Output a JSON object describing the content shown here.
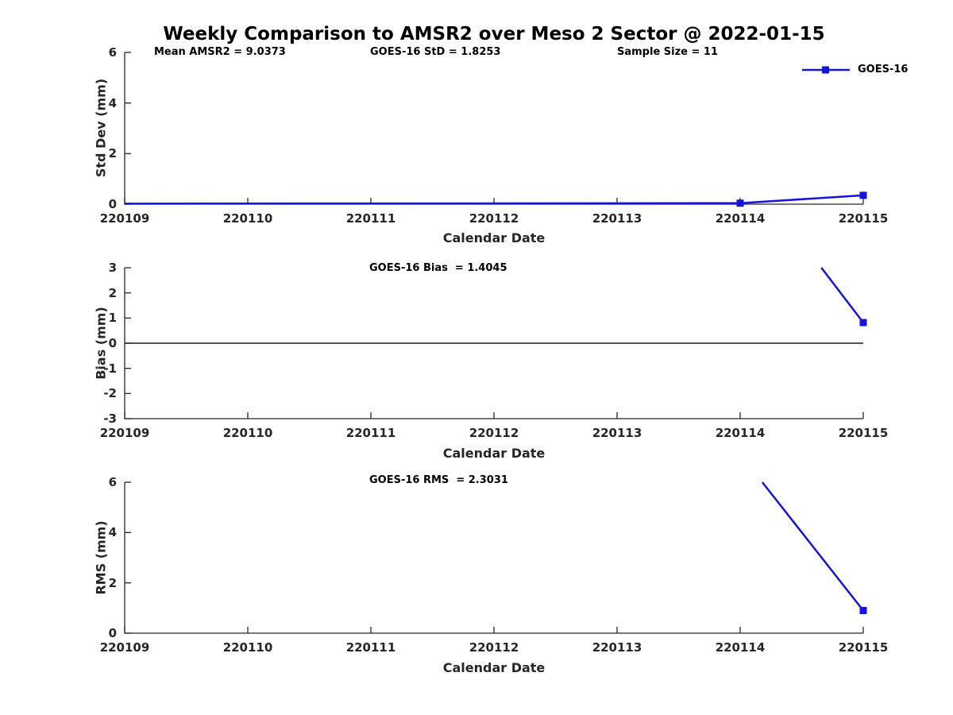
{
  "title": "Weekly Comparison to AMSR2 over Meso 2 Sector @ 2022-01-15",
  "legend": {
    "label": "GOES-16"
  },
  "colors": {
    "series_line": "#1414dd",
    "axis": "#262626",
    "zero_line": "#1a1a1a",
    "text": "#000000"
  },
  "x_axis": {
    "label": "Calendar Date",
    "ticks": [
      "220109",
      "220110",
      "220111",
      "220112",
      "220113",
      "220114",
      "220115"
    ],
    "range": [
      220109,
      220115
    ]
  },
  "chart_data": [
    {
      "type": "line",
      "name": "std_dev",
      "ylabel": "Std Dev (mm)",
      "ylim": [
        0,
        6
      ],
      "yticks": [
        0,
        2,
        4,
        6
      ],
      "grid": false,
      "zero_line": false,
      "annotations": [
        {
          "text": "Mean AMSR2 = 9.0373"
        },
        {
          "text": "GOES-16 StD = 1.8253"
        },
        {
          "text": "Sample Size = 11"
        }
      ],
      "series": [
        {
          "name": "GOES-16",
          "points": [
            [
              220109,
              0.02
            ],
            [
              220114,
              0.04
            ],
            [
              220115,
              0.35
            ]
          ],
          "markers": [
            [
              220114,
              0.04
            ],
            [
              220115,
              0.35
            ]
          ],
          "note": "flat near 0 from 220109 through 220114, rises to ~0.35 at 220115"
        }
      ]
    },
    {
      "type": "line",
      "name": "bias",
      "ylabel": "Bias (mm)",
      "ylim": [
        -3,
        3
      ],
      "yticks": [
        -3,
        -2,
        -1,
        0,
        1,
        2,
        3
      ],
      "grid": false,
      "zero_line": true,
      "annotations": [
        {
          "text": "GOES-16 Bias  = 1.4045"
        }
      ],
      "series": [
        {
          "name": "GOES-16",
          "points": [
            [
              220114.66,
              3
            ],
            [
              220115,
              0.82
            ]
          ],
          "markers": [
            [
              220115,
              0.82
            ]
          ],
          "note": "segment enters clipped at top of axes (220114 value above ylim), ends ~0.82 at 220115"
        }
      ]
    },
    {
      "type": "line",
      "name": "rms",
      "ylabel": "RMS (mm)",
      "ylim": [
        0,
        6
      ],
      "yticks": [
        0,
        2,
        4,
        6
      ],
      "grid": false,
      "zero_line": false,
      "annotations": [
        {
          "text": "GOES-16 RMS  = 2.3031"
        }
      ],
      "series": [
        {
          "name": "GOES-16",
          "points": [
            [
              220114.18,
              6
            ],
            [
              220115,
              0.9
            ]
          ],
          "markers": [
            [
              220115,
              0.9
            ]
          ],
          "note": "segment enters clipped at top of axes (220114 value above ylim), ends ~0.9 at 220115"
        }
      ]
    }
  ]
}
